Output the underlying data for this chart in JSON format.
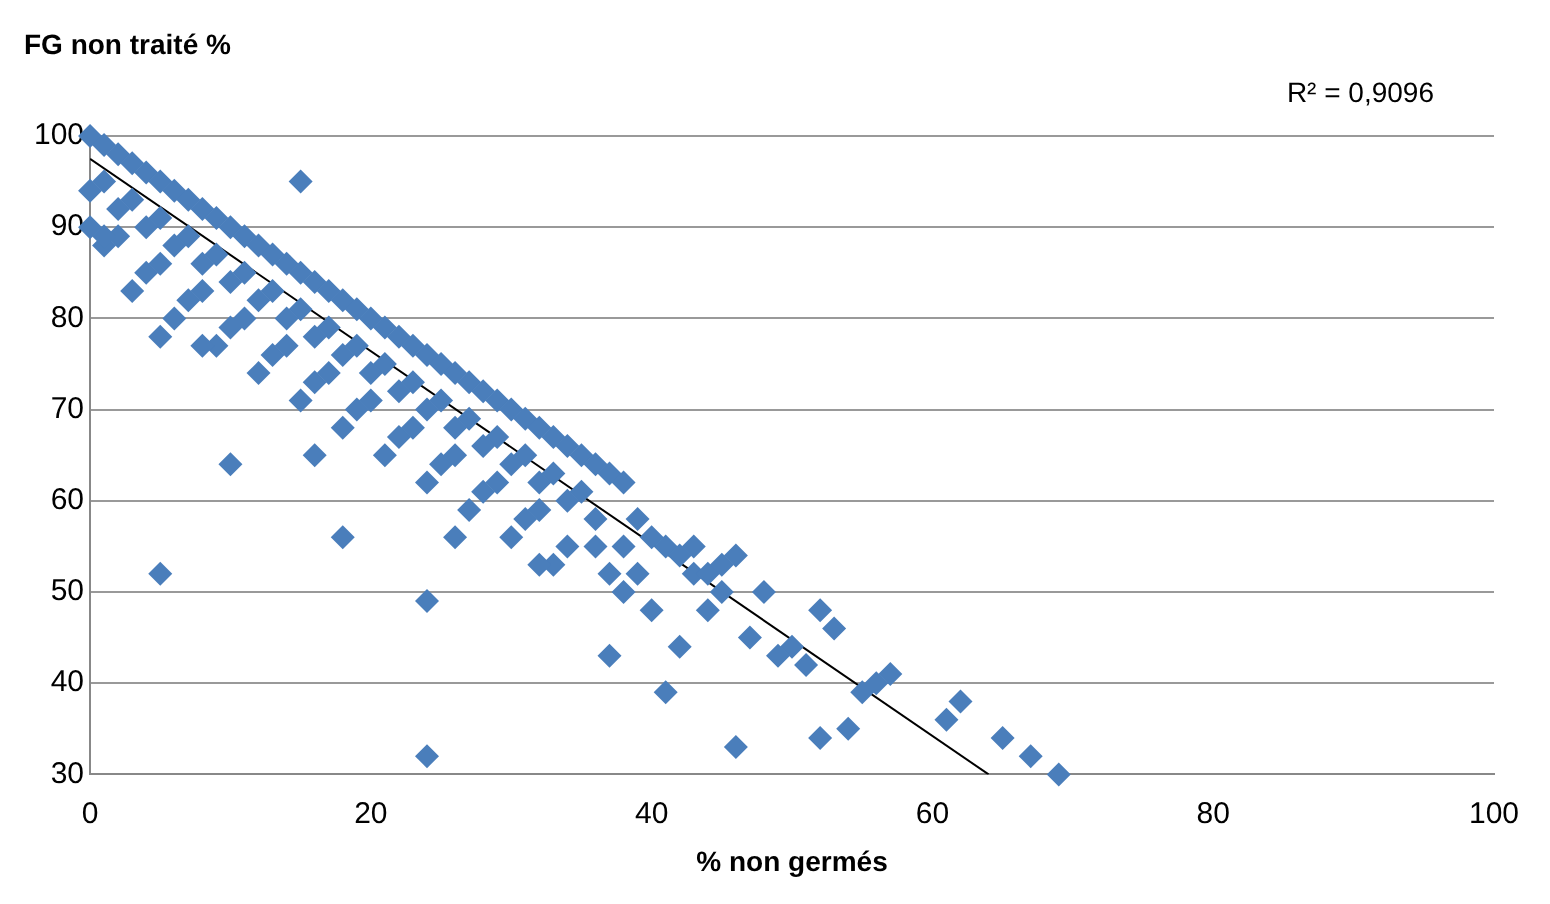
{
  "chart_data": {
    "type": "scatter",
    "ylabel": "FG non traité %",
    "xlabel": "% non germés",
    "annotations": [
      "R² = 0,9096"
    ],
    "xlim": [
      0,
      100
    ],
    "xticks": [
      0,
      20,
      40,
      60,
      80,
      100
    ],
    "ylim": [
      30,
      100
    ],
    "yticks": [
      30,
      40,
      50,
      60,
      70,
      80,
      90,
      100
    ],
    "grid": "y",
    "legend": false,
    "series": [
      {
        "marker": "diamond",
        "color": "#4a7ebb",
        "x": [
          1,
          3,
          5,
          7,
          9,
          11,
          13,
          15,
          17,
          19,
          21,
          23,
          25,
          27,
          29,
          31,
          33,
          35,
          1,
          4,
          7,
          10,
          13,
          16,
          19,
          22,
          25,
          28,
          31,
          34,
          2,
          5,
          8,
          11,
          14,
          17,
          20,
          23,
          26,
          29,
          32,
          39,
          40,
          41,
          42,
          43,
          38,
          39,
          44,
          45,
          36,
          37,
          0,
          1,
          2,
          3,
          4,
          5,
          6,
          7,
          8,
          9,
          10,
          11,
          12,
          13,
          14,
          15,
          16,
          17,
          18,
          19,
          20,
          21,
          22,
          23,
          24,
          25,
          26,
          27,
          28,
          29,
          30,
          31,
          32,
          33,
          34,
          35,
          36,
          37,
          38,
          0,
          2,
          4,
          6,
          8,
          10,
          12,
          14,
          16,
          18,
          20,
          22,
          24,
          26,
          28,
          30,
          32,
          34,
          36,
          3,
          6,
          9,
          12,
          15,
          18,
          21,
          24,
          27,
          30,
          33,
          15,
          5,
          24,
          24,
          18,
          26,
          32,
          10,
          16,
          8,
          5,
          0,
          1,
          37,
          41,
          46,
          52,
          54,
          61,
          62,
          65,
          67,
          69,
          57,
          56,
          48,
          50,
          52,
          53,
          44,
          42,
          40,
          38,
          45,
          46,
          43,
          47,
          49,
          51,
          55
        ],
        "values": [
          95,
          93,
          91,
          89,
          87,
          85,
          83,
          81,
          79,
          77,
          75,
          73,
          71,
          69,
          67,
          65,
          63,
          61,
          88,
          85,
          82,
          79,
          76,
          73,
          70,
          67,
          64,
          61,
          58,
          55,
          89,
          86,
          83,
          80,
          77,
          74,
          71,
          68,
          65,
          62,
          59,
          58,
          56,
          55,
          54,
          52,
          55,
          52,
          52,
          50,
          55,
          52,
          100,
          99,
          98,
          97,
          96,
          95,
          94,
          93,
          92,
          91,
          90,
          89,
          88,
          87,
          86,
          85,
          84,
          83,
          82,
          81,
          80,
          79,
          78,
          77,
          76,
          75,
          74,
          73,
          72,
          71,
          70,
          69,
          68,
          67,
          66,
          65,
          64,
          63,
          62,
          94,
          92,
          90,
          88,
          86,
          84,
          82,
          80,
          78,
          76,
          74,
          72,
          70,
          68,
          66,
          64,
          62,
          60,
          58,
          83,
          80,
          77,
          74,
          71,
          68,
          65,
          62,
          59,
          56,
          53,
          95,
          52,
          32,
          49,
          56,
          56,
          53,
          64,
          65,
          77,
          78,
          90,
          89,
          43,
          39,
          33,
          34,
          35,
          36,
          38,
          34,
          32,
          30,
          41,
          40,
          50,
          44,
          48,
          46,
          48,
          44,
          48,
          50,
          53,
          54,
          55,
          45,
          43,
          42,
          39
        ]
      },
      {
        "type": "line",
        "marker": "none",
        "color": "#000000",
        "x": [
          0,
          64
        ],
        "values": [
          97.5,
          30
        ]
      }
    ]
  }
}
